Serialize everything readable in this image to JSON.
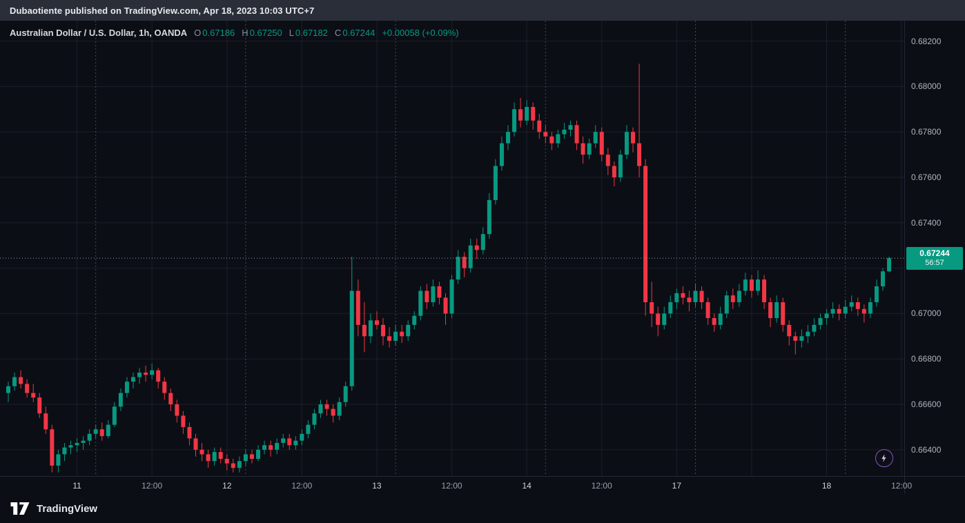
{
  "header": {
    "text": "Dubaotiente published on TradingView.com, Apr 18, 2023 10:03 UTC+7"
  },
  "legend": {
    "symbol": "Australian Dollar / U.S. Dollar, 1h, OANDA",
    "o_label": "O",
    "o_value": "0.67186",
    "h_label": "H",
    "h_value": "0.67250",
    "l_label": "L",
    "l_value": "0.67182",
    "c_label": "C",
    "c_value": "0.67244",
    "change": "+0.00058 (+0.09%)"
  },
  "footer": {
    "brand": "TradingView"
  },
  "icons": {
    "flash": "lightning-icon",
    "logo": "tradingview-logo-icon"
  },
  "chart_data": {
    "type": "candlestick",
    "title": "Australian Dollar / U.S. Dollar, 1h, OANDA",
    "interval": "1h",
    "exchange": "OANDA",
    "colors": {
      "up": "#089981",
      "down": "#f23645",
      "current_tag_bg": "#089981",
      "grid": "rgba(110,120,150,0.16)",
      "session_line": "rgba(110,122,165,0.55)",
      "close_line": "#9aa0aa"
    },
    "y_axis": {
      "range_top": 0.6829,
      "range_bottom": 0.66284,
      "labels": [
        {
          "text": "0.68200",
          "price": 0.682
        },
        {
          "text": "0.68000",
          "price": 0.68
        },
        {
          "text": "0.67800",
          "price": 0.678
        },
        {
          "text": "0.67600",
          "price": 0.676
        },
        {
          "text": "0.67400",
          "price": 0.674
        },
        {
          "text": "0.67000",
          "price": 0.67
        },
        {
          "text": "0.66800",
          "price": 0.668
        },
        {
          "text": "0.66600",
          "price": 0.666
        },
        {
          "text": "0.66400",
          "price": 0.664
        }
      ],
      "gridline_prices": [
        0.682,
        0.68,
        0.678,
        0.676,
        0.674,
        0.672,
        0.67,
        0.668,
        0.666,
        0.664
      ]
    },
    "x_axis": {
      "ticks": [
        {
          "index": 11,
          "label": "11",
          "major": true
        },
        {
          "index": 23,
          "label": "12:00",
          "major": false
        },
        {
          "index": 35,
          "label": "12",
          "major": true
        },
        {
          "index": 47,
          "label": "12:00",
          "major": false
        },
        {
          "index": 59,
          "label": "13",
          "major": true
        },
        {
          "index": 71,
          "label": "12:00",
          "major": false
        },
        {
          "index": 83,
          "label": "14",
          "major": true
        },
        {
          "index": 95,
          "label": "12:00",
          "major": false
        },
        {
          "index": 107,
          "label": "17",
          "major": true
        },
        {
          "index": 131,
          "label": "18",
          "major": true
        },
        {
          "index": 143,
          "label": "12:00",
          "major": false
        }
      ],
      "gridline_indices": [
        11,
        23,
        35,
        47,
        59,
        71,
        83,
        95,
        107,
        119,
        131,
        143
      ],
      "session_break_indices": [
        14,
        38,
        62,
        86,
        110,
        134
      ]
    },
    "current_price": {
      "value": 0.67244,
      "text": "0.67244",
      "countdown": "56:57"
    },
    "last": {
      "open": 0.67186,
      "high": 0.6725,
      "low": 0.67182,
      "close": 0.67244,
      "change_abs": 0.00058,
      "change_pct": 0.09
    },
    "candles": [
      [
        0.6665,
        0.667,
        0.6661,
        0.6668
      ],
      [
        0.6668,
        0.6674,
        0.6666,
        0.6672
      ],
      [
        0.6672,
        0.6675,
        0.6667,
        0.6669
      ],
      [
        0.6669,
        0.6671,
        0.6663,
        0.6665
      ],
      [
        0.6665,
        0.6669,
        0.6661,
        0.6663
      ],
      [
        0.6663,
        0.6665,
        0.6654,
        0.6656
      ],
      [
        0.6656,
        0.6659,
        0.6647,
        0.6649
      ],
      [
        0.6649,
        0.6651,
        0.663,
        0.6633
      ],
      [
        0.6633,
        0.664,
        0.663,
        0.6638
      ],
      [
        0.6638,
        0.6643,
        0.6635,
        0.6641
      ],
      [
        0.6641,
        0.6644,
        0.6638,
        0.6642
      ],
      [
        0.6642,
        0.6645,
        0.6639,
        0.6643
      ],
      [
        0.6643,
        0.6646,
        0.664,
        0.6644
      ],
      [
        0.6644,
        0.6649,
        0.6642,
        0.6647
      ],
      [
        0.6647,
        0.6651,
        0.6645,
        0.6649
      ],
      [
        0.6649,
        0.6652,
        0.6644,
        0.6646
      ],
      [
        0.6646,
        0.6653,
        0.6645,
        0.6651
      ],
      [
        0.6651,
        0.6661,
        0.665,
        0.6659
      ],
      [
        0.6659,
        0.6667,
        0.6657,
        0.6665
      ],
      [
        0.6665,
        0.6672,
        0.6663,
        0.667
      ],
      [
        0.667,
        0.6674,
        0.6667,
        0.6672
      ],
      [
        0.6672,
        0.6676,
        0.6669,
        0.6674
      ],
      [
        0.6674,
        0.6677,
        0.667,
        0.6673
      ],
      [
        0.6673,
        0.6678,
        0.6671,
        0.6675
      ],
      [
        0.6675,
        0.6676,
        0.6667,
        0.667
      ],
      [
        0.667,
        0.6672,
        0.6662,
        0.6665
      ],
      [
        0.6665,
        0.6667,
        0.6657,
        0.666
      ],
      [
        0.666,
        0.6662,
        0.6652,
        0.6655
      ],
      [
        0.6655,
        0.6657,
        0.6647,
        0.665
      ],
      [
        0.665,
        0.6652,
        0.6642,
        0.6645
      ],
      [
        0.6645,
        0.6647,
        0.6637,
        0.664
      ],
      [
        0.664,
        0.6643,
        0.6635,
        0.6638
      ],
      [
        0.6638,
        0.664,
        0.6632,
        0.6635
      ],
      [
        0.6635,
        0.6641,
        0.6633,
        0.6639
      ],
      [
        0.6639,
        0.6641,
        0.6634,
        0.6636
      ],
      [
        0.6636,
        0.6638,
        0.6631,
        0.6634
      ],
      [
        0.6634,
        0.6636,
        0.663,
        0.6632
      ],
      [
        0.6632,
        0.6637,
        0.663,
        0.6635
      ],
      [
        0.6635,
        0.664,
        0.6633,
        0.6638
      ],
      [
        0.6638,
        0.664,
        0.6634,
        0.6636
      ],
      [
        0.6636,
        0.6642,
        0.6635,
        0.664
      ],
      [
        0.664,
        0.6644,
        0.6638,
        0.6642
      ],
      [
        0.6642,
        0.6644,
        0.6637,
        0.664
      ],
      [
        0.664,
        0.6645,
        0.6638,
        0.6643
      ],
      [
        0.6643,
        0.6647,
        0.6641,
        0.6645
      ],
      [
        0.6645,
        0.6647,
        0.664,
        0.6642
      ],
      [
        0.6642,
        0.6646,
        0.664,
        0.6644
      ],
      [
        0.6644,
        0.6649,
        0.6642,
        0.6647
      ],
      [
        0.6647,
        0.6653,
        0.6645,
        0.6651
      ],
      [
        0.6651,
        0.6658,
        0.6649,
        0.6656
      ],
      [
        0.6656,
        0.6662,
        0.6654,
        0.666
      ],
      [
        0.666,
        0.6662,
        0.6655,
        0.6658
      ],
      [
        0.6658,
        0.666,
        0.6652,
        0.6655
      ],
      [
        0.6655,
        0.6663,
        0.6653,
        0.6661
      ],
      [
        0.6661,
        0.667,
        0.6659,
        0.6668
      ],
      [
        0.6668,
        0.6725,
        0.6666,
        0.671
      ],
      [
        0.671,
        0.6715,
        0.669,
        0.6695
      ],
      [
        0.6695,
        0.6705,
        0.6683,
        0.669
      ],
      [
        0.669,
        0.67,
        0.6687,
        0.6697
      ],
      [
        0.6697,
        0.6701,
        0.6693,
        0.6695
      ],
      [
        0.6695,
        0.6698,
        0.6686,
        0.669
      ],
      [
        0.669,
        0.6694,
        0.6685,
        0.6688
      ],
      [
        0.6688,
        0.6695,
        0.6686,
        0.6692
      ],
      [
        0.6692,
        0.6695,
        0.6687,
        0.669
      ],
      [
        0.669,
        0.6697,
        0.6688,
        0.6695
      ],
      [
        0.6695,
        0.6701,
        0.6693,
        0.6699
      ],
      [
        0.6699,
        0.6712,
        0.6697,
        0.671
      ],
      [
        0.671,
        0.6713,
        0.6702,
        0.6705
      ],
      [
        0.6705,
        0.6715,
        0.6703,
        0.6712
      ],
      [
        0.6712,
        0.6714,
        0.6704,
        0.6707
      ],
      [
        0.6707,
        0.6709,
        0.6695,
        0.67
      ],
      [
        0.67,
        0.6717,
        0.6698,
        0.6715
      ],
      [
        0.6715,
        0.6728,
        0.6713,
        0.6725
      ],
      [
        0.6725,
        0.6727,
        0.6716,
        0.672
      ],
      [
        0.672,
        0.6733,
        0.6718,
        0.673
      ],
      [
        0.673,
        0.6733,
        0.6724,
        0.6728
      ],
      [
        0.6728,
        0.6738,
        0.6726,
        0.6735
      ],
      [
        0.6735,
        0.6753,
        0.6733,
        0.675
      ],
      [
        0.675,
        0.6768,
        0.6748,
        0.6765
      ],
      [
        0.6765,
        0.6778,
        0.6763,
        0.6775
      ],
      [
        0.6775,
        0.6783,
        0.6772,
        0.678
      ],
      [
        0.678,
        0.6793,
        0.6778,
        0.679
      ],
      [
        0.679,
        0.6795,
        0.6782,
        0.6785
      ],
      [
        0.6785,
        0.6794,
        0.6783,
        0.6791
      ],
      [
        0.6791,
        0.6793,
        0.6781,
        0.6785
      ],
      [
        0.6785,
        0.6788,
        0.6777,
        0.678
      ],
      [
        0.678,
        0.6783,
        0.6775,
        0.6778
      ],
      [
        0.6778,
        0.678,
        0.6772,
        0.6775
      ],
      [
        0.6775,
        0.6781,
        0.6773,
        0.6779
      ],
      [
        0.6779,
        0.6784,
        0.6777,
        0.6781
      ],
      [
        0.6781,
        0.6785,
        0.6778,
        0.6783
      ],
      [
        0.6783,
        0.6785,
        0.6772,
        0.6775
      ],
      [
        0.6775,
        0.6778,
        0.6766,
        0.677
      ],
      [
        0.677,
        0.6777,
        0.6768,
        0.6775
      ],
      [
        0.6775,
        0.6783,
        0.6773,
        0.678
      ],
      [
        0.678,
        0.6782,
        0.6767,
        0.677
      ],
      [
        0.677,
        0.6773,
        0.6761,
        0.6765
      ],
      [
        0.6765,
        0.6767,
        0.6756,
        0.676
      ],
      [
        0.676,
        0.6772,
        0.6758,
        0.677
      ],
      [
        0.677,
        0.6783,
        0.6768,
        0.678
      ],
      [
        0.678,
        0.6782,
        0.6771,
        0.6775
      ],
      [
        0.6775,
        0.681,
        0.676,
        0.6765
      ],
      [
        0.6765,
        0.6768,
        0.6699,
        0.6705
      ],
      [
        0.6705,
        0.6714,
        0.6694,
        0.67
      ],
      [
        0.67,
        0.6703,
        0.669,
        0.6695
      ],
      [
        0.6695,
        0.6703,
        0.6693,
        0.67
      ],
      [
        0.67,
        0.6708,
        0.6698,
        0.6705
      ],
      [
        0.6705,
        0.6711,
        0.6702,
        0.6709
      ],
      [
        0.6709,
        0.6712,
        0.6704,
        0.6707
      ],
      [
        0.6707,
        0.671,
        0.6701,
        0.6705
      ],
      [
        0.6705,
        0.6713,
        0.6703,
        0.671
      ],
      [
        0.671,
        0.6712,
        0.6702,
        0.6705
      ],
      [
        0.6705,
        0.6707,
        0.6695,
        0.6698
      ],
      [
        0.6698,
        0.67,
        0.6692,
        0.6695
      ],
      [
        0.6695,
        0.6703,
        0.6693,
        0.67
      ],
      [
        0.67,
        0.671,
        0.6698,
        0.6708
      ],
      [
        0.6708,
        0.6711,
        0.6702,
        0.6705
      ],
      [
        0.6705,
        0.6713,
        0.6703,
        0.671
      ],
      [
        0.671,
        0.6718,
        0.6708,
        0.6715
      ],
      [
        0.6715,
        0.6717,
        0.6707,
        0.671
      ],
      [
        0.671,
        0.6719,
        0.6708,
        0.6715
      ],
      [
        0.6715,
        0.6717,
        0.6702,
        0.6705
      ],
      [
        0.6705,
        0.6707,
        0.6694,
        0.6698
      ],
      [
        0.6698,
        0.6708,
        0.6696,
        0.6705
      ],
      [
        0.6705,
        0.6707,
        0.6692,
        0.6695
      ],
      [
        0.6695,
        0.6697,
        0.6686,
        0.669
      ],
      [
        0.669,
        0.6692,
        0.6682,
        0.6688
      ],
      [
        0.6688,
        0.6693,
        0.6685,
        0.669
      ],
      [
        0.669,
        0.6695,
        0.6687,
        0.6692
      ],
      [
        0.6692,
        0.6698,
        0.669,
        0.6695
      ],
      [
        0.6695,
        0.67,
        0.6693,
        0.6698
      ],
      [
        0.6698,
        0.6702,
        0.6695,
        0.67
      ],
      [
        0.67,
        0.6705,
        0.6698,
        0.6702
      ],
      [
        0.6702,
        0.6704,
        0.6697,
        0.67
      ],
      [
        0.67,
        0.6706,
        0.6698,
        0.6703
      ],
      [
        0.6703,
        0.6708,
        0.6701,
        0.6705
      ],
      [
        0.6705,
        0.6707,
        0.6699,
        0.6702
      ],
      [
        0.6702,
        0.6704,
        0.6696,
        0.67
      ],
      [
        0.67,
        0.6707,
        0.6698,
        0.6705
      ],
      [
        0.6705,
        0.6715,
        0.6703,
        0.6712
      ],
      [
        0.6712,
        0.672,
        0.671,
        0.67186
      ],
      [
        0.67186,
        0.6725,
        0.67182,
        0.67244
      ]
    ]
  }
}
